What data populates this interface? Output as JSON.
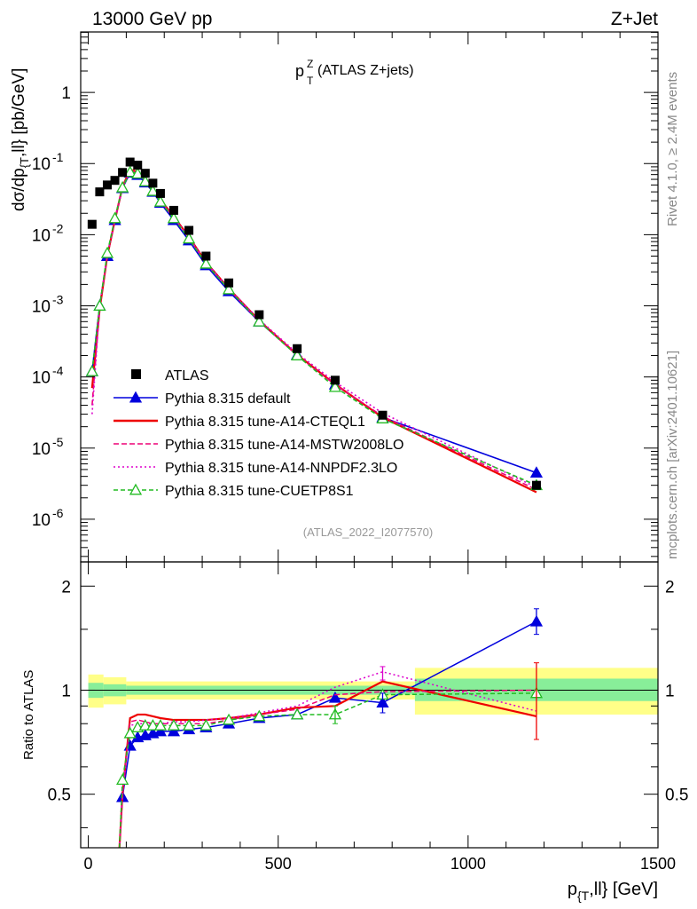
{
  "header": {
    "energy_label": "13000 GeV pp",
    "process_label": "Z+Jet"
  },
  "side_labels": {
    "rivet": "Rivet 4.1.0, ≥ 2.4M events",
    "mcplots": "mcplots.cern.ch [arXiv:2401.10621]"
  },
  "chart_data": {
    "type": "line",
    "title_main": "p",
    "title_sup": "Z",
    "title_sub": "T",
    "title_rest": " (ATLAS Z+jets)",
    "analysis_id": "(ATLAS_2022_I2077570)",
    "ylabel_main": "dσ/dp",
    "ylabel_sub": "{T",
    "ylabel_rest": ",ll} [pb/GeV]",
    "xlabel_main": "p",
    "xlabel_sub": "{T",
    "xlabel_rest": ",ll} [GeV]",
    "ratio_ylabel": "Ratio to ATLAS",
    "x_range": [
      -20,
      1500
    ],
    "main_ylim_log10": [
      -6.6,
      0.85
    ],
    "ratio_ylim": [
      0.35,
      2.35
    ],
    "x_ticks": [
      0,
      500,
      1000,
      1500
    ],
    "x_tick_labels": [
      "0",
      "500",
      "1000",
      "1500"
    ],
    "main_y_ticks": [
      {
        "base": "10",
        "exp": "-6",
        "value": -6
      },
      {
        "base": "10",
        "exp": "-5",
        "value": -5
      },
      {
        "base": "10",
        "exp": "-4",
        "value": -4
      },
      {
        "base": "10",
        "exp": "-3",
        "value": -3
      },
      {
        "base": "10",
        "exp": "-2",
        "value": -2
      },
      {
        "base": "10",
        "exp": "-1",
        "value": -1
      },
      {
        "base": "1",
        "exp": "",
        "value": 0
      }
    ],
    "ratio_y_ticks": [
      {
        "label": "0.5",
        "value": 0.5
      },
      {
        "label": "1",
        "value": 1
      },
      {
        "label": "2",
        "value": 2
      }
    ],
    "x": [
      10,
      30,
      50,
      70,
      90,
      110,
      130,
      150,
      170,
      190,
      225,
      265,
      310,
      370,
      450,
      550,
      650,
      775,
      1180
    ],
    "x_err": [
      10,
      10,
      10,
      10,
      10,
      10,
      10,
      10,
      10,
      10,
      25,
      15,
      30,
      30,
      50,
      50,
      50,
      75,
      320
    ],
    "atlas": [
      0.014,
      0.04,
      0.05,
      0.058,
      0.075,
      0.105,
      0.095,
      0.073,
      0.053,
      0.038,
      0.022,
      0.0115,
      0.005,
      0.0021,
      0.00075,
      0.00025,
      9e-05,
      2.9e-05,
      3e-06
    ],
    "band": {
      "x_edges": [
        0,
        40,
        100,
        860,
        1500
      ],
      "green_low": [
        0.95,
        0.96,
        0.97,
        0.93
      ],
      "green_high": [
        1.05,
        1.04,
        1.03,
        1.08
      ],
      "yellow_low": [
        0.89,
        0.91,
        0.94,
        0.85
      ],
      "yellow_high": [
        1.11,
        1.09,
        1.06,
        1.16
      ]
    },
    "series": [
      {
        "name": "Pythia 8.315 default",
        "color": "#0000dd",
        "dash": "",
        "marker": "triangle-filled",
        "x": [
          10,
          30,
          50,
          70,
          90,
          110,
          130,
          150,
          170,
          190,
          225,
          265,
          310,
          370,
          450,
          550,
          650,
          775,
          1180
        ],
        "values": [
          0.00012,
          0.001,
          0.005,
          0.016,
          0.045,
          0.074,
          0.069,
          0.054,
          0.04,
          0.028,
          0.016,
          0.0083,
          0.0037,
          0.0016,
          0.0006,
          0.000205,
          7.8e-05,
          2.7e-05,
          4.5e-06
        ],
        "ratio_x": [
          90,
          110,
          130,
          150,
          170,
          190,
          225,
          265,
          310,
          370,
          450,
          550,
          650,
          775,
          1180
        ],
        "ratio": [
          0.49,
          0.69,
          0.73,
          0.74,
          0.75,
          0.76,
          0.76,
          0.77,
          0.78,
          0.8,
          0.83,
          0.85,
          0.95,
          0.92,
          1.58
        ]
      },
      {
        "name": "Pythia 8.315 tune-A14-CTEQL1",
        "color": "#ee0000",
        "dash": "",
        "marker": "none",
        "x": [
          10,
          30,
          50,
          70,
          90,
          110,
          130,
          150,
          170,
          190,
          225,
          265,
          310,
          370,
          450,
          550,
          650,
          775,
          1180
        ],
        "values": [
          7e-05,
          0.0009,
          0.005,
          0.016,
          0.047,
          0.082,
          0.077,
          0.059,
          0.043,
          0.031,
          0.018,
          0.0093,
          0.0041,
          0.00175,
          0.00062,
          0.000205,
          7.9e-05,
          2.7e-05,
          2.4e-06
        ],
        "ratio_x": [
          90,
          110,
          130,
          150,
          170,
          190,
          225,
          265,
          310,
          370,
          450,
          550,
          650,
          775,
          1180
        ],
        "ratio": [
          0.5,
          0.83,
          0.85,
          0.85,
          0.84,
          0.83,
          0.82,
          0.82,
          0.82,
          0.83,
          0.85,
          0.89,
          0.9,
          1.06,
          0.84
        ]
      },
      {
        "name": "Pythia 8.315 tune-A14-MSTW2008LO",
        "color": "#ee0077",
        "dash": "6,3",
        "marker": "none",
        "x": [
          10,
          30,
          50,
          70,
          90,
          110,
          130,
          150,
          170,
          190,
          225,
          265,
          310,
          370,
          450,
          550,
          650,
          775,
          1180
        ],
        "values": [
          4e-05,
          0.00095,
          0.0052,
          0.0165,
          0.046,
          0.08,
          0.075,
          0.058,
          0.042,
          0.03,
          0.0175,
          0.0091,
          0.004,
          0.00172,
          0.00061,
          0.0002,
          7.8e-05,
          2.8e-05,
          2.6e-06
        ],
        "ratio_x": [
          90,
          110,
          130,
          150,
          170,
          190,
          225,
          265,
          310,
          370,
          450,
          550,
          650,
          775,
          1180
        ],
        "ratio": [
          0.5,
          0.81,
          0.82,
          0.81,
          0.8,
          0.8,
          0.8,
          0.8,
          0.8,
          0.82,
          0.85,
          0.88,
          0.97,
          0.99,
          1.0
        ]
      },
      {
        "name": "Pythia 8.315 tune-A14-NNPDF2.3LO",
        "color": "#dd00cc",
        "dash": "2,3",
        "marker": "none",
        "x": [
          10,
          30,
          50,
          70,
          90,
          110,
          130,
          150,
          170,
          190,
          225,
          265,
          310,
          370,
          450,
          550,
          650,
          775,
          1180
        ],
        "values": [
          3e-05,
          0.00098,
          0.005,
          0.016,
          0.046,
          0.079,
          0.074,
          0.057,
          0.042,
          0.03,
          0.0175,
          0.0092,
          0.0041,
          0.00175,
          0.00064,
          0.000215,
          8.5e-05,
          3.1e-05,
          2.8e-06
        ],
        "ratio_x": [
          90,
          110,
          130,
          150,
          170,
          190,
          225,
          265,
          310,
          370,
          450,
          550,
          650,
          775,
          1180
        ],
        "ratio": [
          0.5,
          0.79,
          0.8,
          0.8,
          0.8,
          0.8,
          0.81,
          0.81,
          0.82,
          0.83,
          0.86,
          0.9,
          1.02,
          1.13,
          0.87
        ]
      },
      {
        "name": "Pythia 8.315 tune-CUETP8S1",
        "color": "#22bb22",
        "dash": "5,3",
        "marker": "triangle-open",
        "x": [
          10,
          30,
          50,
          70,
          90,
          110,
          130,
          150,
          170,
          190,
          225,
          265,
          310,
          370,
          450,
          550,
          650,
          775,
          1180
        ],
        "values": [
          0.00012,
          0.001,
          0.0055,
          0.017,
          0.046,
          0.076,
          0.072,
          0.056,
          0.041,
          0.029,
          0.017,
          0.0088,
          0.0039,
          0.0017,
          0.0006,
          0.0002,
          7.2e-05,
          2.6e-05,
          3e-06
        ],
        "ratio_x": [
          90,
          110,
          130,
          150,
          170,
          190,
          225,
          265,
          310,
          370,
          450,
          550,
          650,
          775,
          1180
        ],
        "ratio": [
          0.55,
          0.75,
          0.78,
          0.79,
          0.79,
          0.79,
          0.79,
          0.79,
          0.79,
          0.82,
          0.84,
          0.85,
          0.85,
          0.97,
          0.98
        ]
      }
    ],
    "legend": [
      {
        "label": "ATLAS",
        "style": "square"
      },
      {
        "label": "Pythia 8.315 default",
        "style": "series-0"
      },
      {
        "label": "Pythia 8.315 tune-A14-CTEQL1",
        "style": "series-1"
      },
      {
        "label": "Pythia 8.315 tune-A14-MSTW2008LO",
        "style": "series-2"
      },
      {
        "label": "Pythia 8.315 tune-A14-NNPDF2.3LO",
        "style": "series-3"
      },
      {
        "label": "Pythia 8.315 tune-CUETP8S1",
        "style": "series-4"
      }
    ]
  }
}
